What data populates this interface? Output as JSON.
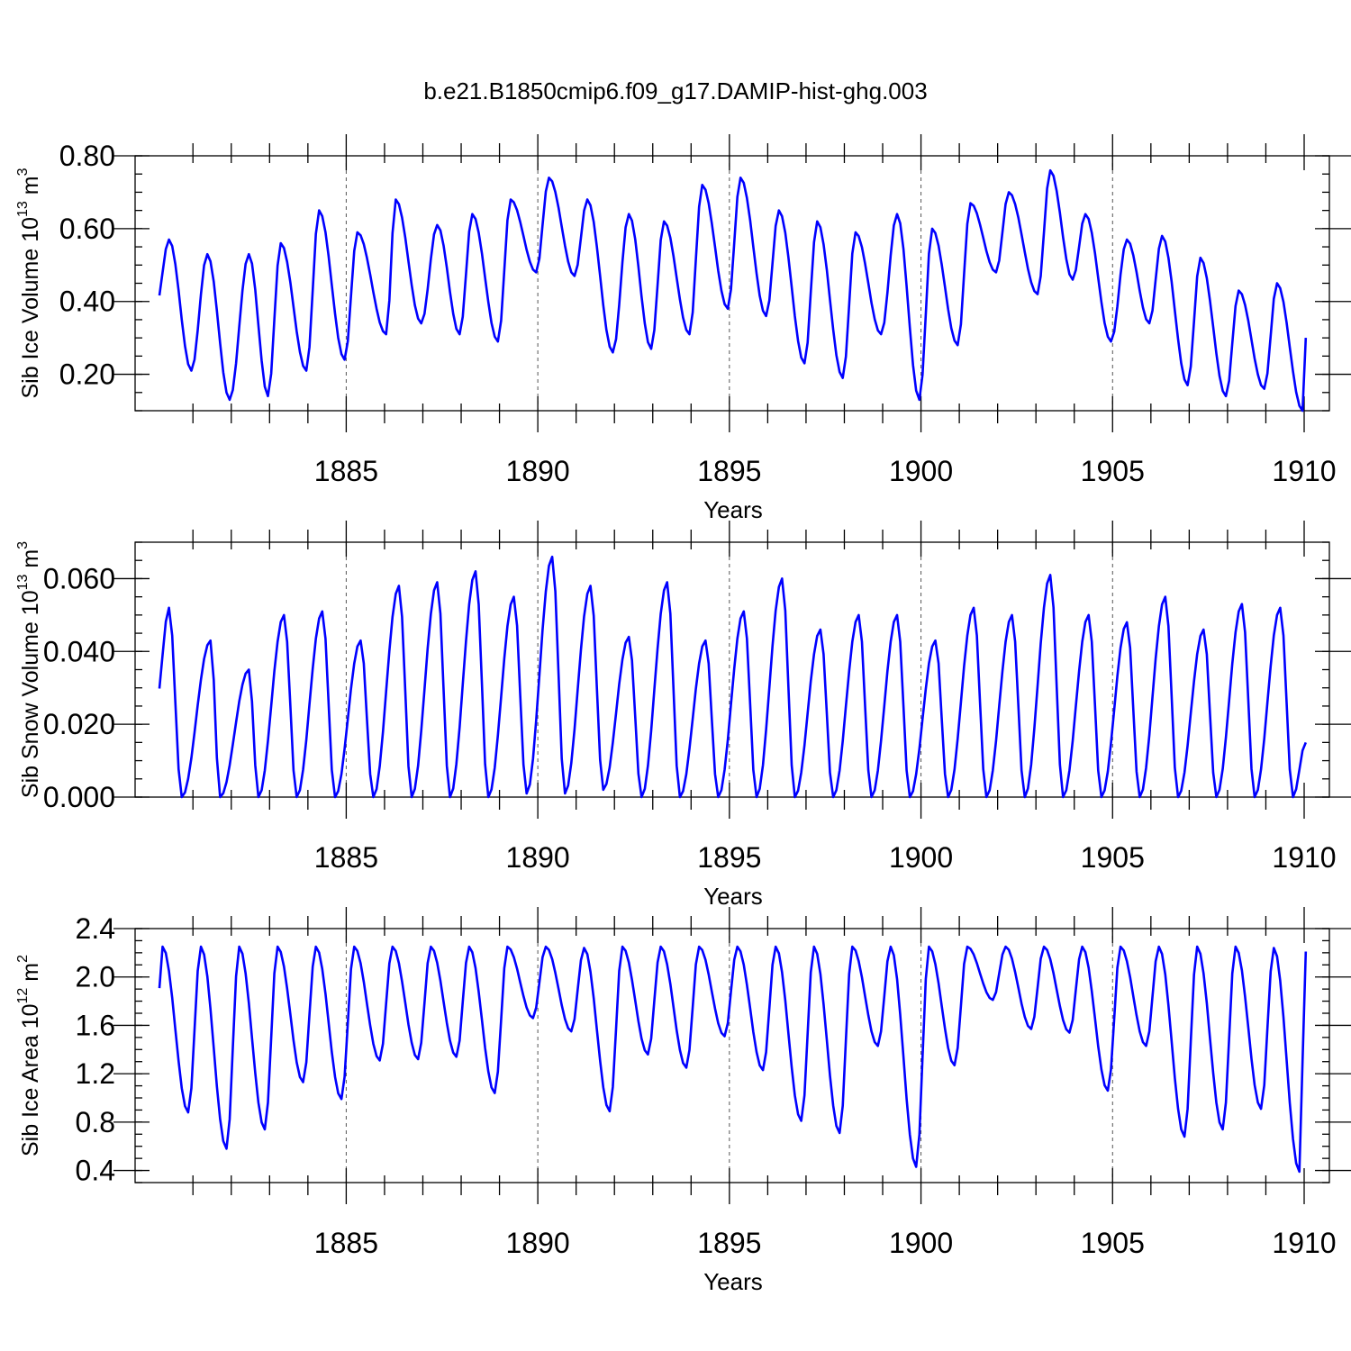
{
  "chart_data": [
    {
      "type": "line",
      "title": "b.e21.B1850cmip6.f09_g17.DAMIP-hist-ghg.003",
      "ylabel": "Sib Ice Volume 10",
      "ylabel_exp": "13",
      "ylabel_unit": " m",
      "ylabel_unit_exp": "3",
      "xlabel": "Years",
      "xlim": [
        1880.125,
        1910.0
      ],
      "ylim": [
        0.1,
        0.8
      ],
      "yticks": [
        0.2,
        0.4,
        0.6,
        0.8
      ],
      "ytick_labels": [
        "0.20",
        "0.40",
        "0.60",
        "0.80"
      ],
      "yminor_step": 0.05,
      "xticks": [
        1885,
        1890,
        1895,
        1900,
        1905,
        1910
      ],
      "xtick_labels": [
        "1885",
        "1890",
        "1895",
        "1900",
        "1905",
        "1910"
      ],
      "grid_x": [
        1885,
        1890,
        1895,
        1900,
        1905
      ],
      "series": [
        {
          "name": "Sib Ice Volume",
          "color": "#0000ff",
          "start": 1880.125,
          "step": 0.08333333,
          "min_months": [
            10,
            22,
            34,
            46,
            58,
            71,
            82,
            94,
            106,
            118,
            130,
            142,
            154,
            166,
            178,
            190,
            202,
            214,
            226,
            238,
            250,
            262,
            275,
            286,
            298,
            310,
            322,
            334,
            346,
            358
          ],
          "max_months": [
            3,
            15,
            28,
            38,
            50,
            62,
            74,
            87,
            98,
            110,
            122,
            134,
            147,
            158,
            170,
            182,
            194,
            206,
            218,
            231,
            242,
            254,
            266,
            279,
            290,
            303,
            314,
            326,
            338,
            350
          ],
          "minima": [
            0.21,
            0.13,
            0.14,
            0.21,
            0.24,
            0.31,
            0.34,
            0.31,
            0.29,
            0.48,
            0.47,
            0.26,
            0.27,
            0.31,
            0.38,
            0.36,
            0.23,
            0.19,
            0.31,
            0.13,
            0.28,
            0.48,
            0.42,
            0.46,
            0.29,
            0.34,
            0.17,
            0.14,
            0.16,
            0.1
          ],
          "maxima": [
            0.57,
            0.53,
            0.53,
            0.56,
            0.65,
            0.59,
            0.68,
            0.61,
            0.64,
            0.68,
            0.74,
            0.68,
            0.64,
            0.62,
            0.72,
            0.74,
            0.65,
            0.62,
            0.59,
            0.64,
            0.6,
            0.67,
            0.7,
            0.76,
            0.64,
            0.57,
            0.58,
            0.52,
            0.43,
            0.45
          ],
          "end_value": 0.3
        }
      ]
    },
    {
      "type": "line",
      "ylabel": "Sib Snow Volume 10",
      "ylabel_exp": "13",
      "ylabel_unit": " m",
      "ylabel_unit_exp": "3",
      "xlabel": "Years",
      "xlim": [
        1880.125,
        1910.0
      ],
      "ylim": [
        0.0,
        0.07
      ],
      "yticks": [
        0.0,
        0.02,
        0.04,
        0.06
      ],
      "ytick_labels": [
        "0.000",
        "0.020",
        "0.040",
        "0.060"
      ],
      "yminor_step": 0.005,
      "xticks": [
        1885,
        1890,
        1895,
        1900,
        1905,
        1910
      ],
      "xtick_labels": [
        "1885",
        "1890",
        "1895",
        "1900",
        "1905",
        "1910"
      ],
      "grid_x": [
        1885,
        1890,
        1895,
        1900,
        1905
      ],
      "series": [
        {
          "name": "Sib Snow Volume",
          "color": "#0000ff",
          "start": 1880.125,
          "step": 0.08333333,
          "min_months": [
            7,
            19,
            31,
            43,
            55,
            67,
            79,
            91,
            103,
            115,
            127,
            139,
            151,
            163,
            175,
            187,
            199,
            211,
            223,
            235,
            247,
            259,
            271,
            283,
            295,
            307,
            319,
            331,
            343,
            355
          ],
          "max_months": [
            3,
            16,
            28,
            39,
            51,
            63,
            75,
            87,
            99,
            111,
            123,
            135,
            147,
            159,
            171,
            183,
            195,
            207,
            219,
            231,
            243,
            255,
            267,
            279,
            291,
            303,
            315,
            327,
            339,
            351
          ],
          "minima": [
            0.0,
            0.0,
            0.0,
            0.0,
            0.0,
            0.0,
            0.0,
            0.0,
            0.0,
            0.001,
            0.001,
            0.002,
            0.0,
            0.0,
            0.0,
            0.0,
            0.0,
            0.0,
            0.0,
            0.0,
            0.0,
            0.0,
            0.0,
            0.0,
            0.0,
            0.0,
            0.0,
            0.0,
            0.0,
            0.0
          ],
          "maxima": [
            0.052,
            0.043,
            0.035,
            0.05,
            0.051,
            0.043,
            0.058,
            0.059,
            0.062,
            0.055,
            0.066,
            0.058,
            0.044,
            0.059,
            0.043,
            0.051,
            0.06,
            0.046,
            0.05,
            0.05,
            0.043,
            0.052,
            0.05,
            0.061,
            0.05,
            0.048,
            0.055,
            0.046,
            0.053,
            0.052
          ],
          "end_value": 0.015
        }
      ]
    },
    {
      "type": "line",
      "ylabel": "Sib Ice Area 10",
      "ylabel_exp": "12",
      "ylabel_unit": " m",
      "ylabel_unit_exp": "2",
      "xlabel": "Years",
      "xlim": [
        1880.125,
        1910.0
      ],
      "ylim": [
        0.3,
        2.4
      ],
      "yticks": [
        0.4,
        0.8,
        1.2,
        1.6,
        2.0,
        2.4
      ],
      "ytick_labels": [
        "0.4",
        "0.8",
        "1.2",
        "1.6",
        "2.0",
        "2.4"
      ],
      "yminor_step": 0.1,
      "xticks": [
        1885,
        1890,
        1895,
        1900,
        1905,
        1910
      ],
      "xtick_labels": [
        "1885",
        "1890",
        "1895",
        "1900",
        "1905",
        "1910"
      ],
      "grid_x": [
        1885,
        1890,
        1895,
        1900,
        1905
      ],
      "series": [
        {
          "name": "Sib Ice Area",
          "color": "#0000ff",
          "start": 1880.125,
          "step": 0.08333333,
          "min_months": [
            9,
            21,
            33,
            45,
            57,
            69,
            81,
            93,
            105,
            117,
            129,
            141,
            153,
            165,
            177,
            189,
            201,
            213,
            225,
            237,
            249,
            261,
            273,
            285,
            297,
            309,
            321,
            333,
            345,
            357
          ],
          "max_months": [
            1,
            13,
            25,
            37,
            49,
            61,
            73,
            85,
            97,
            109,
            121,
            133,
            145,
            157,
            169,
            181,
            193,
            205,
            217,
            229,
            241,
            253,
            265,
            277,
            289,
            301,
            313,
            325,
            337,
            349
          ],
          "minima": [
            0.88,
            0.58,
            0.74,
            1.13,
            0.99,
            1.31,
            1.32,
            1.34,
            1.04,
            1.66,
            1.55,
            0.89,
            1.36,
            1.25,
            1.51,
            1.23,
            0.81,
            0.71,
            1.43,
            0.43,
            1.27,
            1.81,
            1.57,
            1.54,
            1.06,
            1.43,
            0.68,
            0.74,
            0.91,
            0.39
          ],
          "maxima": [
            2.25,
            2.25,
            2.25,
            2.25,
            2.25,
            2.25,
            2.25,
            2.25,
            2.25,
            2.25,
            2.25,
            2.24,
            2.25,
            2.25,
            2.25,
            2.25,
            2.25,
            2.25,
            2.25,
            2.25,
            2.25,
            2.25,
            2.25,
            2.25,
            2.25,
            2.25,
            2.25,
            2.25,
            2.25,
            2.24
          ],
          "end_value": 2.21
        }
      ]
    }
  ]
}
